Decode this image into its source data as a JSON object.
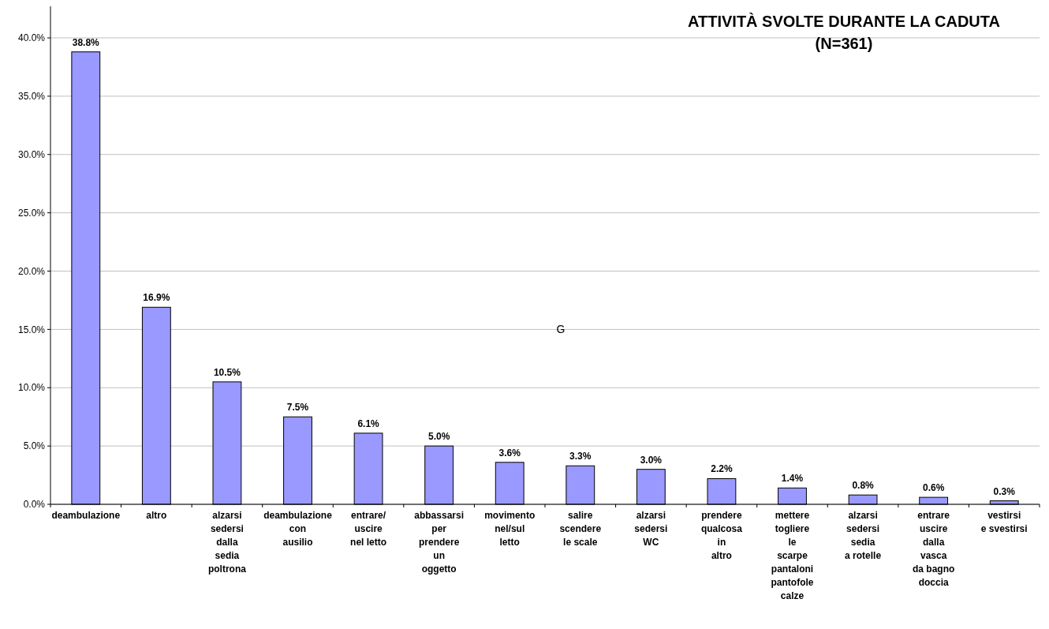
{
  "chart_data": {
    "type": "bar",
    "title": "ATTIVITÀ SVOLTE DURANTE LA CADUTA",
    "subtitle": "(N=361)",
    "categories": [
      "deambulazione",
      "altro",
      "alzarsi\nsedersi\ndalla\nsedia\npoltrona",
      "deambulazione\ncon\nausilio",
      "entrare/\nuscire\nnel letto",
      "abbassarsi\nper\nprendere\nun\noggetto",
      "movimento\nnel/sul\nletto",
      "salire\nscendere\nle scale",
      "alzarsi\nsedersi\nWC",
      "prendere\nqualcosa\nin\naltro",
      "mettere\ntogliere\nle\nscarpe\npantaloni\npantofole\ncalze",
      "alzarsi\nsedersi\nsedia\na rotelle",
      "entrare\nuscire\ndalla\nvasca\nda bagno\ndoccia",
      "vestirsi\ne svestirsi"
    ],
    "values": [
      38.8,
      16.9,
      10.5,
      7.5,
      6.1,
      5.0,
      3.6,
      3.3,
      3.0,
      2.2,
      1.4,
      0.8,
      0.6,
      0.3
    ],
    "value_labels": [
      "38.8%",
      "16.9%",
      "10.5%",
      "7.5%",
      "6.1%",
      "5.0%",
      "3.6%",
      "3.3%",
      "3.0%",
      "2.2%",
      "1.4%",
      "0.8%",
      "0.6%",
      "0.3%"
    ],
    "color": "#9999ff",
    "ylim": [
      0,
      40
    ],
    "yticks": [
      {
        "value": 0,
        "label": "0.0%"
      },
      {
        "value": 5,
        "label": "5.0%"
      },
      {
        "value": 10,
        "label": "10.0%"
      },
      {
        "value": 15,
        "label": "15.0%"
      },
      {
        "value": 20,
        "label": "20.0%"
      },
      {
        "value": 25,
        "label": "25.0%"
      },
      {
        "value": 30,
        "label": "30.0%"
      },
      {
        "value": 35,
        "label": "35.0%"
      },
      {
        "value": 40,
        "label": "40.0%"
      }
    ],
    "grid": "y",
    "annotations": [
      "G"
    ]
  }
}
